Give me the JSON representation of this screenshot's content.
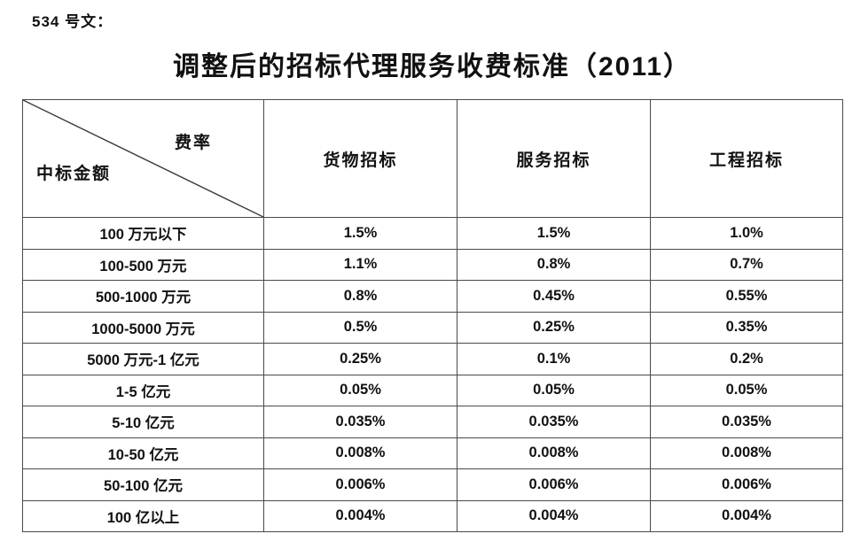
{
  "page": {
    "doc_number": "534 号文：",
    "title": "调整后的招标代理服务收费标准（2011）"
  },
  "table": {
    "corner": {
      "top_right": "费率",
      "bottom_left": "中标金额"
    },
    "columns": [
      "货物招标",
      "服务招标",
      "工程招标"
    ],
    "rows": [
      {
        "label": "100 万元以下",
        "values": [
          "1.5%",
          "1.5%",
          "1.0%"
        ]
      },
      {
        "label": "100-500 万元",
        "values": [
          "1.1%",
          "0.8%",
          "0.7%"
        ]
      },
      {
        "label": "500-1000 万元",
        "values": [
          "0.8%",
          "0.45%",
          "0.55%"
        ]
      },
      {
        "label": "1000-5000 万元",
        "values": [
          "0.5%",
          "0.25%",
          "0.35%"
        ]
      },
      {
        "label": "5000 万元-1 亿元",
        "values": [
          "0.25%",
          "0.1%",
          "0.2%"
        ]
      },
      {
        "label": "1-5 亿元",
        "values": [
          "0.05%",
          "0.05%",
          "0.05%"
        ]
      },
      {
        "label": "5-10 亿元",
        "values": [
          "0.035%",
          "0.035%",
          "0.035%"
        ]
      },
      {
        "label": "10-50 亿元",
        "values": [
          "0.008%",
          "0.008%",
          "0.008%"
        ]
      },
      {
        "label": "50-100 亿元",
        "values": [
          "0.006%",
          "0.006%",
          "0.006%"
        ]
      },
      {
        "label": "100 亿以上",
        "values": [
          "0.004%",
          "0.004%",
          "0.004%"
        ]
      }
    ]
  }
}
